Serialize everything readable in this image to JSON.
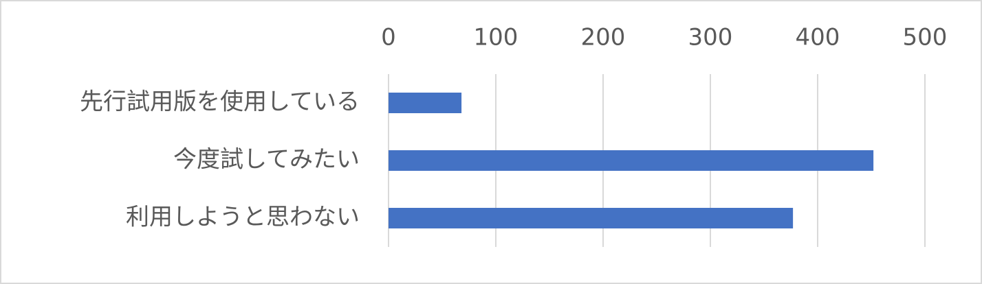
{
  "chart_data": {
    "type": "bar",
    "horizontal": true,
    "categories": [
      "先行試用版を使用している",
      "今度試してみたい",
      "利用しようと思わない"
    ],
    "values": [
      68,
      452,
      377
    ],
    "color": "#4472c4",
    "xlim": [
      0,
      500
    ],
    "xticks": [
      0,
      100,
      200,
      300,
      400,
      500
    ],
    "grid": true
  }
}
